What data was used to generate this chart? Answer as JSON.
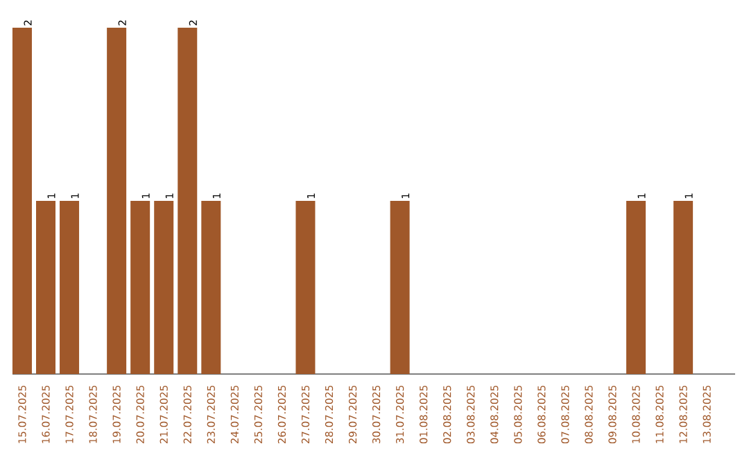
{
  "chart_data": {
    "type": "bar",
    "color": "#a0582a",
    "categories": [
      "15.07.2025",
      "16.07.2025",
      "17.07.2025",
      "18.07.2025",
      "19.07.2025",
      "20.07.2025",
      "21.07.2025",
      "22.07.2025",
      "23.07.2025",
      "24.07.2025",
      "25.07.2025",
      "26.07.2025",
      "27.07.2025",
      "28.07.2025",
      "29.07.2025",
      "30.07.2025",
      "31.07.2025",
      "01.08.2025",
      "02.08.2025",
      "03.08.2025",
      "04.08.2025",
      "05.08.2025",
      "06.08.2025",
      "07.08.2025",
      "08.08.2025",
      "09.08.2025",
      "10.08.2025",
      "11.08.2025",
      "12.08.2025",
      "13.08.2025"
    ],
    "values": [
      2,
      1,
      1,
      0,
      2,
      1,
      1,
      2,
      1,
      0,
      0,
      0,
      1,
      0,
      0,
      0,
      1,
      0,
      0,
      0,
      0,
      0,
      0,
      0,
      0,
      0,
      1,
      0,
      1,
      0
    ],
    "value_labels": [
      "2",
      "1",
      "1",
      null,
      "2",
      "1",
      "1",
      "2",
      "1",
      null,
      null,
      null,
      "1",
      null,
      null,
      null,
      "1",
      null,
      null,
      null,
      null,
      null,
      null,
      null,
      null,
      null,
      "1",
      null,
      "1",
      null
    ]
  }
}
